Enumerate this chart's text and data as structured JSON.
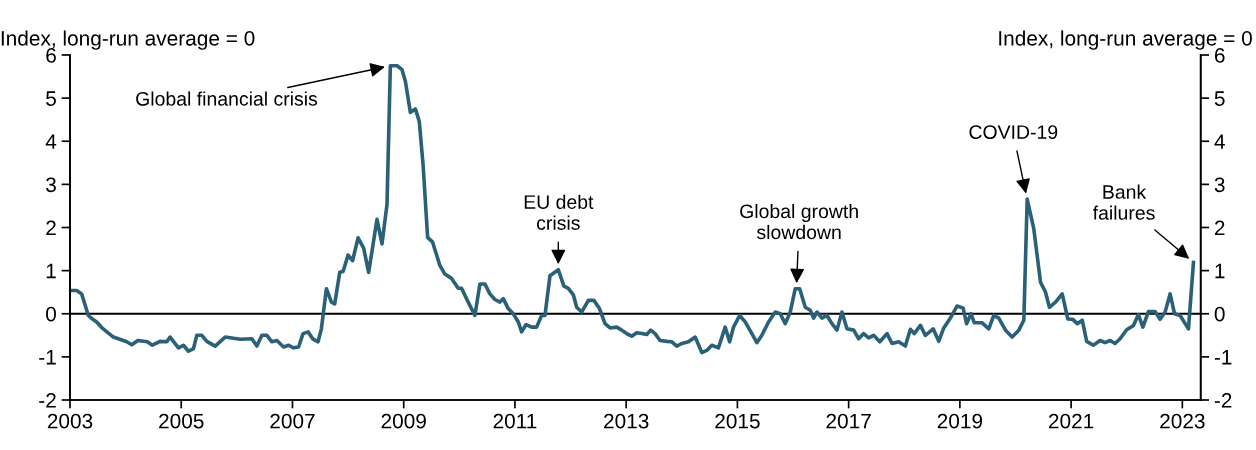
{
  "chart_data": {
    "type": "line",
    "ylabel": "Index, long-run average = 0",
    "y2label": "Index, long-run average = 0",
    "xlim": [
      2003,
      2023.33
    ],
    "xticks": [
      2003,
      2005,
      2007,
      2009,
      2011,
      2013,
      2015,
      2017,
      2019,
      2021,
      2023
    ],
    "ylim": [
      -2,
      6
    ],
    "yticks": [
      -2,
      -1,
      0,
      1,
      2,
      3,
      4,
      5,
      6
    ],
    "y2lim": [
      -2,
      6
    ],
    "y2ticks": [
      -2,
      -1,
      0,
      1,
      2,
      3,
      4,
      5,
      6
    ],
    "ref_lines": [
      {
        "axis": "y",
        "value": 0,
        "color": "#000000"
      }
    ],
    "annotations": [
      {
        "text": "Global financial crisis",
        "x": 2008.76,
        "y": 5.75
      },
      {
        "text": "EU debt\ncrisis",
        "x": 2011.78,
        "y": 1.02
      },
      {
        "text": "Global growth\nslowdown",
        "x": 2016.06,
        "y": 0.58
      },
      {
        "text": "COVID-19",
        "x": 2020.21,
        "y": 2.66
      },
      {
        "text": "Bank\nfailures",
        "x": 2023.2,
        "y": 1.19
      }
    ],
    "series": [
      {
        "color": "#2a6178",
        "x": [
          2003.0,
          2003.12,
          2003.21,
          2003.33,
          2003.39,
          2003.48,
          2003.57,
          2003.78,
          2004.02,
          2004.11,
          2004.22,
          2004.39,
          2004.48,
          2004.62,
          2004.74,
          2004.8,
          2004.95,
          2005.04,
          2005.13,
          2005.22,
          2005.28,
          2005.37,
          2005.46,
          2005.61,
          2005.79,
          2006.06,
          2006.27,
          2006.36,
          2006.45,
          2006.54,
          2006.63,
          2006.72,
          2006.84,
          2006.93,
          2007.02,
          2007.11,
          2007.19,
          2007.28,
          2007.37,
          2007.46,
          2007.52,
          2007.61,
          2007.7,
          2007.76,
          2007.85,
          2007.91,
          2008.0,
          2008.08,
          2008.18,
          2008.28,
          2008.37,
          2008.52,
          2008.61,
          2008.7,
          2008.76,
          2008.88,
          2008.97,
          2009.03,
          2009.12,
          2009.21,
          2009.28,
          2009.35,
          2009.43,
          2009.52,
          2009.65,
          2009.74,
          2009.86,
          2009.98,
          2010.04,
          2010.16,
          2010.28,
          2010.37,
          2010.46,
          2010.55,
          2010.64,
          2010.73,
          2010.79,
          2010.88,
          2010.97,
          2011.06,
          2011.12,
          2011.2,
          2011.3,
          2011.39,
          2011.48,
          2011.54,
          2011.63,
          2011.78,
          2011.88,
          2011.96,
          2012.05,
          2012.11,
          2012.2,
          2012.32,
          2012.42,
          2012.52,
          2012.62,
          2012.71,
          2012.83,
          2012.92,
          2013.01,
          2013.1,
          2013.19,
          2013.28,
          2013.37,
          2013.44,
          2013.52,
          2013.61,
          2013.73,
          2013.82,
          2013.91,
          2014.0,
          2014.12,
          2014.24,
          2014.36,
          2014.45,
          2014.54,
          2014.66,
          2014.78,
          2014.86,
          2014.93,
          2015.04,
          2015.14,
          2015.26,
          2015.35,
          2015.44,
          2015.56,
          2015.68,
          2015.77,
          2015.86,
          2015.95,
          2016.04,
          2016.12,
          2016.22,
          2016.31,
          2016.37,
          2016.43,
          2016.52,
          2016.61,
          2016.7,
          2016.79,
          2016.88,
          2016.97,
          2017.09,
          2017.18,
          2017.27,
          2017.36,
          2017.45,
          2017.56,
          2017.69,
          2017.78,
          2017.9,
          2018.02,
          2018.11,
          2018.18,
          2018.29,
          2018.38,
          2018.52,
          2018.62,
          2018.71,
          2018.83,
          2018.95,
          2019.06,
          2019.12,
          2019.2,
          2019.26,
          2019.4,
          2019.52,
          2019.61,
          2019.7,
          2019.82,
          2019.94,
          2020.06,
          2020.15,
          2020.21,
          2020.33,
          2020.45,
          2020.54,
          2020.61,
          2020.72,
          2020.84,
          2020.94,
          2021.03,
          2021.11,
          2021.2,
          2021.28,
          2021.4,
          2021.52,
          2021.61,
          2021.7,
          2021.79,
          2021.88,
          2022.0,
          2022.12,
          2022.21,
          2022.29,
          2022.39,
          2022.51,
          2022.6,
          2022.69,
          2022.78,
          2022.86,
          2022.96,
          2023.11,
          2023.2
        ],
        "values": [
          0.54,
          0.54,
          0.46,
          -0.04,
          -0.11,
          -0.19,
          -0.32,
          -0.54,
          -0.65,
          -0.72,
          -0.62,
          -0.65,
          -0.73,
          -0.64,
          -0.65,
          -0.54,
          -0.79,
          -0.73,
          -0.87,
          -0.81,
          -0.5,
          -0.5,
          -0.64,
          -0.75,
          -0.54,
          -0.59,
          -0.58,
          -0.75,
          -0.5,
          -0.5,
          -0.65,
          -0.62,
          -0.77,
          -0.73,
          -0.79,
          -0.77,
          -0.46,
          -0.42,
          -0.59,
          -0.65,
          -0.35,
          0.58,
          0.27,
          0.23,
          0.96,
          0.98,
          1.36,
          1.23,
          1.76,
          1.52,
          0.96,
          2.19,
          1.62,
          2.54,
          5.75,
          5.75,
          5.66,
          5.39,
          4.67,
          4.75,
          4.46,
          3.43,
          1.77,
          1.66,
          1.12,
          0.92,
          0.82,
          0.59,
          0.59,
          0.27,
          -0.04,
          0.69,
          0.69,
          0.46,
          0.33,
          0.27,
          0.35,
          0.12,
          0.0,
          -0.19,
          -0.42,
          -0.25,
          -0.31,
          -0.31,
          -0.04,
          -0.04,
          0.88,
          1.02,
          0.64,
          0.59,
          0.44,
          0.15,
          0.04,
          0.31,
          0.31,
          0.12,
          -0.23,
          -0.33,
          -0.31,
          -0.38,
          -0.46,
          -0.52,
          -0.44,
          -0.46,
          -0.48,
          -0.38,
          -0.46,
          -0.62,
          -0.64,
          -0.65,
          -0.75,
          -0.69,
          -0.65,
          -0.54,
          -0.9,
          -0.85,
          -0.73,
          -0.79,
          -0.31,
          -0.65,
          -0.31,
          -0.04,
          -0.19,
          -0.46,
          -0.67,
          -0.5,
          -0.19,
          0.04,
          0.0,
          -0.23,
          0.04,
          0.58,
          0.58,
          0.15,
          0.08,
          -0.1,
          0.04,
          -0.1,
          -0.04,
          -0.23,
          -0.38,
          0.04,
          -0.35,
          -0.38,
          -0.58,
          -0.46,
          -0.56,
          -0.5,
          -0.65,
          -0.46,
          -0.69,
          -0.65,
          -0.75,
          -0.36,
          -0.46,
          -0.27,
          -0.5,
          -0.35,
          -0.64,
          -0.33,
          -0.1,
          0.18,
          0.13,
          -0.23,
          0.0,
          -0.21,
          -0.21,
          -0.35,
          -0.04,
          -0.1,
          -0.38,
          -0.54,
          -0.38,
          -0.15,
          2.66,
          1.96,
          0.73,
          0.5,
          0.15,
          0.27,
          0.46,
          -0.12,
          -0.13,
          -0.23,
          -0.15,
          -0.64,
          -0.73,
          -0.62,
          -0.67,
          -0.62,
          -0.69,
          -0.58,
          -0.37,
          -0.27,
          -0.02,
          -0.31,
          0.05,
          0.05,
          -0.13,
          0.04,
          0.46,
          0.0,
          -0.04,
          -0.35,
          1.19
        ]
      }
    ]
  }
}
